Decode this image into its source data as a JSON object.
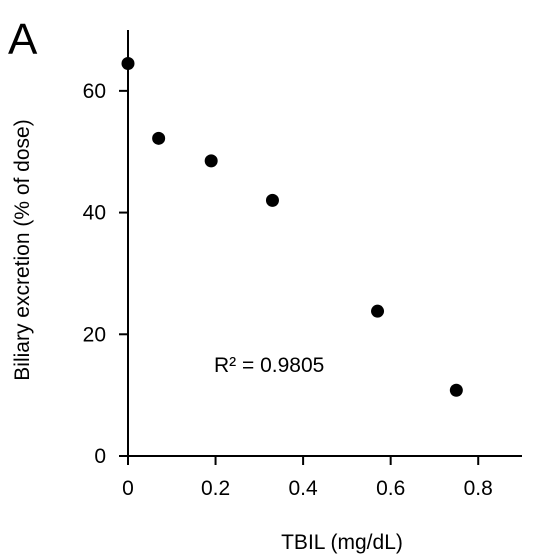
{
  "panel_label": "A",
  "chart_data": {
    "type": "scatter",
    "xlabel": "TBIL (mg/dL)",
    "ylabel": "Biliary excretion (% of dose)",
    "xlim": [
      0,
      0.9
    ],
    "ylim": [
      0,
      70
    ],
    "xticks": [
      0,
      0.2,
      0.4,
      0.6,
      0.8
    ],
    "xtick_labels": [
      "0",
      "0.2",
      "0.4",
      "0.6",
      "0.8"
    ],
    "yticks": [
      0,
      20,
      40,
      60
    ],
    "ytick_labels": [
      "0",
      "20",
      "40",
      "60"
    ],
    "grid": false,
    "annotation": "R² = 0.9805",
    "marker_color": "#000000",
    "points": [
      {
        "x": 0.0,
        "y": 64.5
      },
      {
        "x": 0.07,
        "y": 52.2
      },
      {
        "x": 0.19,
        "y": 48.5
      },
      {
        "x": 0.33,
        "y": 42.0
      },
      {
        "x": 0.57,
        "y": 23.8
      },
      {
        "x": 0.75,
        "y": 10.8
      }
    ]
  }
}
